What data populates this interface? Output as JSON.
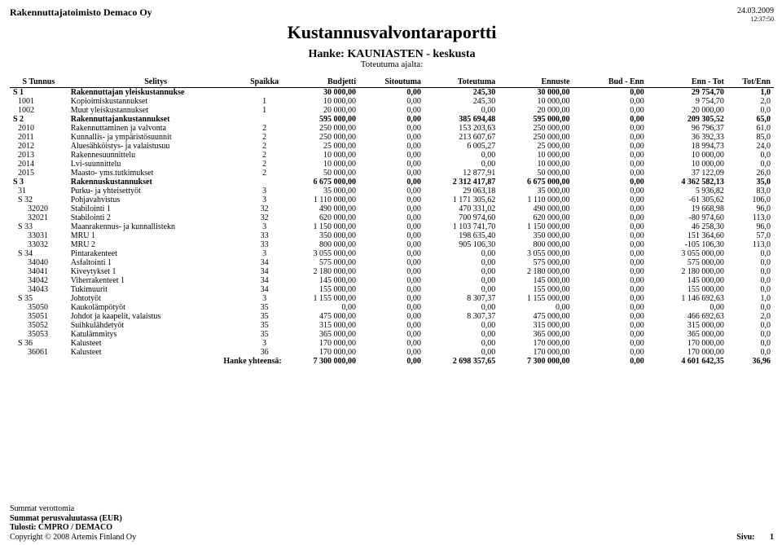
{
  "header": {
    "company": "Rakennuttajatoimisto Demaco Oy",
    "date": "24.03.2009",
    "time": "12:37:50",
    "title": "Kustannusvalvontaraportti",
    "project_label": "Hanke: KAUNIASTEN - keskusta",
    "subtitle": "Toteutuma ajalta:"
  },
  "columns": [
    {
      "label": "S  Tunnus",
      "align": "left"
    },
    {
      "label": "Selitys",
      "align": "left"
    },
    {
      "label": "Spaikka",
      "align": "center"
    },
    {
      "label": "Budjetti",
      "align": "right"
    },
    {
      "label": "Sitoutuma",
      "align": "right"
    },
    {
      "label": "Toteutuma",
      "align": "right"
    },
    {
      "label": "Ennuste",
      "align": "right"
    },
    {
      "label": "Bud - Enn",
      "align": "right"
    },
    {
      "label": "Enn - Tot",
      "align": "right"
    },
    {
      "label": "Tot/Enn",
      "align": "right"
    }
  ],
  "rows": [
    {
      "lvl": 0,
      "cells": [
        "S 1",
        "Rakennuttajan yleiskustannukse",
        "",
        "30 000,00",
        "0,00",
        "245,30",
        "30 000,00",
        "0,00",
        "29 754,70",
        "1,0"
      ]
    },
    {
      "lvl": 1,
      "cells": [
        "1001",
        "Kopioimiskustannukset",
        "1",
        "10 000,00",
        "0,00",
        "245,30",
        "10 000,00",
        "0,00",
        "9 754,70",
        "2,0"
      ]
    },
    {
      "lvl": 1,
      "cells": [
        "1002",
        "Muut yleiskustannukset",
        "1",
        "20 000,00",
        "0,00",
        "0,00",
        "20 000,00",
        "0,00",
        "20 000,00",
        "0,0"
      ]
    },
    {
      "lvl": 0,
      "cells": [
        "S 2",
        "Rakennuttajankustannukset",
        "",
        "595 000,00",
        "0,00",
        "385 694,48",
        "595 000,00",
        "0,00",
        "209 305,52",
        "65,0"
      ]
    },
    {
      "lvl": 1,
      "cells": [
        "2010",
        "Rakennuttaminen ja valvonta",
        "2",
        "250 000,00",
        "0,00",
        "153 203,63",
        "250 000,00",
        "0,00",
        "96 796,37",
        "61,0"
      ]
    },
    {
      "lvl": 1,
      "cells": [
        "2011",
        "Kunnallis- ja ympäristösuunnit",
        "2",
        "250 000,00",
        "0,00",
        "213 607,67",
        "250 000,00",
        "0,00",
        "36 392,33",
        "85,0"
      ]
    },
    {
      "lvl": 1,
      "cells": [
        "2012",
        "Aluesähköistys- ja valaistusuu",
        "2",
        "25 000,00",
        "0,00",
        "6 005,27",
        "25 000,00",
        "0,00",
        "18 994,73",
        "24,0"
      ]
    },
    {
      "lvl": 1,
      "cells": [
        "2013",
        "Rakennesuunnittelu",
        "2",
        "10 000,00",
        "0,00",
        "0,00",
        "10 000,00",
        "0,00",
        "10 000,00",
        "0,0"
      ]
    },
    {
      "lvl": 1,
      "cells": [
        "2014",
        "Lvi-suunnittelu",
        "2",
        "10 000,00",
        "0,00",
        "0,00",
        "10 000,00",
        "0,00",
        "10 000,00",
        "0,0"
      ]
    },
    {
      "lvl": 1,
      "cells": [
        "2015",
        "Maasto- yms.tutkimukset",
        "2",
        "50 000,00",
        "0,00",
        "12 877,91",
        "50 000,00",
        "0,00",
        "37 122,09",
        "26,0"
      ]
    },
    {
      "lvl": 0,
      "cells": [
        "S 3",
        "Rakennuskustannukset",
        "",
        "6 675 000,00",
        "0,00",
        "2 312 417,87",
        "6 675 000,00",
        "0,00",
        "4 362 582,13",
        "35,0"
      ]
    },
    {
      "lvl": 1,
      "cells": [
        "31",
        "Purku- ja yhteisettyöt",
        "3",
        "35 000,00",
        "0,00",
        "29 063,18",
        "35 000,00",
        "0,00",
        "5 936,82",
        "83,0"
      ]
    },
    {
      "lvl": 1,
      "cells": [
        "S 32",
        "Pohjavahvistus",
        "3",
        "1 110 000,00",
        "0,00",
        "1 171 305,62",
        "1 110 000,00",
        "0,00",
        "-61 305,62",
        "106,0"
      ]
    },
    {
      "lvl": 2,
      "cells": [
        "32020",
        "Stabilointi 1",
        "32",
        "490 000,00",
        "0,00",
        "470 331,02",
        "490 000,00",
        "0,00",
        "19 668,98",
        "96,0"
      ]
    },
    {
      "lvl": 2,
      "cells": [
        "32021",
        "Stabilointi 2",
        "32",
        "620 000,00",
        "0,00",
        "700 974,60",
        "620 000,00",
        "0,00",
        "-80 974,60",
        "113,0"
      ]
    },
    {
      "lvl": 1,
      "cells": [
        "S 33",
        "Maanrakennus- ja kunnallistekn",
        "3",
        "1 150 000,00",
        "0,00",
        "1 103 741,70",
        "1 150 000,00",
        "0,00",
        "46 258,30",
        "96,0"
      ]
    },
    {
      "lvl": 2,
      "cells": [
        "33031",
        "MRU 1",
        "33",
        "350 000,00",
        "0,00",
        "198 635,40",
        "350 000,00",
        "0,00",
        "151 364,60",
        "57,0"
      ]
    },
    {
      "lvl": 2,
      "cells": [
        "33032",
        "MRU 2",
        "33",
        "800 000,00",
        "0,00",
        "905 106,30",
        "800 000,00",
        "0,00",
        "-105 106,30",
        "113,0"
      ]
    },
    {
      "lvl": 1,
      "cells": [
        "S 34",
        "Pintarakenteet",
        "3",
        "3 055 000,00",
        "0,00",
        "0,00",
        "3 055 000,00",
        "0,00",
        "3 055 000,00",
        "0,0"
      ]
    },
    {
      "lvl": 2,
      "cells": [
        "34040",
        "Asfaltointi 1",
        "34",
        "575 000,00",
        "0,00",
        "0,00",
        "575 000,00",
        "0,00",
        "575 000,00",
        "0,0"
      ]
    },
    {
      "lvl": 2,
      "cells": [
        "34041",
        "Kiveytykset 1",
        "34",
        "2 180 000,00",
        "0,00",
        "0,00",
        "2 180 000,00",
        "0,00",
        "2 180 000,00",
        "0,0"
      ]
    },
    {
      "lvl": 2,
      "cells": [
        "34042",
        "Viherrakenteet 1",
        "34",
        "145 000,00",
        "0,00",
        "0,00",
        "145 000,00",
        "0,00",
        "145 000,00",
        "0,0"
      ]
    },
    {
      "lvl": 2,
      "cells": [
        "34043",
        "Tukimuurit",
        "34",
        "155 000,00",
        "0,00",
        "0,00",
        "155 000,00",
        "0,00",
        "155 000,00",
        "0,0"
      ]
    },
    {
      "lvl": 1,
      "cells": [
        "S 35",
        "Johtotyöt",
        "3",
        "1 155 000,00",
        "0,00",
        "8 307,37",
        "1 155 000,00",
        "0,00",
        "1 146 692,63",
        "1,0"
      ]
    },
    {
      "lvl": 2,
      "cells": [
        "35050",
        "Kaukolämpötyöt",
        "35",
        "0,00",
        "0,00",
        "0,00",
        "0,00",
        "0,00",
        "0,00",
        "0,0"
      ]
    },
    {
      "lvl": 2,
      "cells": [
        "35051",
        "Johdot ja kaapelit, valaistus",
        "35",
        "475 000,00",
        "0,00",
        "8 307,37",
        "475 000,00",
        "0,00",
        "466 692,63",
        "2,0"
      ]
    },
    {
      "lvl": 2,
      "cells": [
        "35052",
        "Suihkulähdetyöt",
        "35",
        "315 000,00",
        "0,00",
        "0,00",
        "315 000,00",
        "0,00",
        "315 000,00",
        "0,0"
      ]
    },
    {
      "lvl": 2,
      "cells": [
        "35053",
        "Katulämmitys",
        "35",
        "365 000,00",
        "0,00",
        "0,00",
        "365 000,00",
        "0,00",
        "365 000,00",
        "0,0"
      ]
    },
    {
      "lvl": 1,
      "cells": [
        "S 36",
        "Kalusteet",
        "3",
        "170 000,00",
        "0,00",
        "0,00",
        "170 000,00",
        "0,00",
        "170 000,00",
        "0,0"
      ]
    },
    {
      "lvl": 2,
      "cells": [
        "36061",
        "Kalusteet",
        "36",
        "170 000,00",
        "0,00",
        "0,00",
        "170 000,00",
        "0,00",
        "170 000,00",
        "0,0"
      ]
    }
  ],
  "totals": {
    "label": "Hanke yhteensä:",
    "cells": [
      "7 300 000,00",
      "0,00",
      "2 698 357,65",
      "7 300 000,00",
      "0,00",
      "4 601 642,35",
      "36,96"
    ]
  },
  "footer": {
    "line1": "Summat verottomia",
    "line2": "Summat perusvaluutassa (EUR)",
    "line3": "Tulosti: CMPRO / DEMACO",
    "line4": "Copyright © 2008 Artemis Finland Oy",
    "page_label": "Sivu:",
    "page_num": "1"
  }
}
